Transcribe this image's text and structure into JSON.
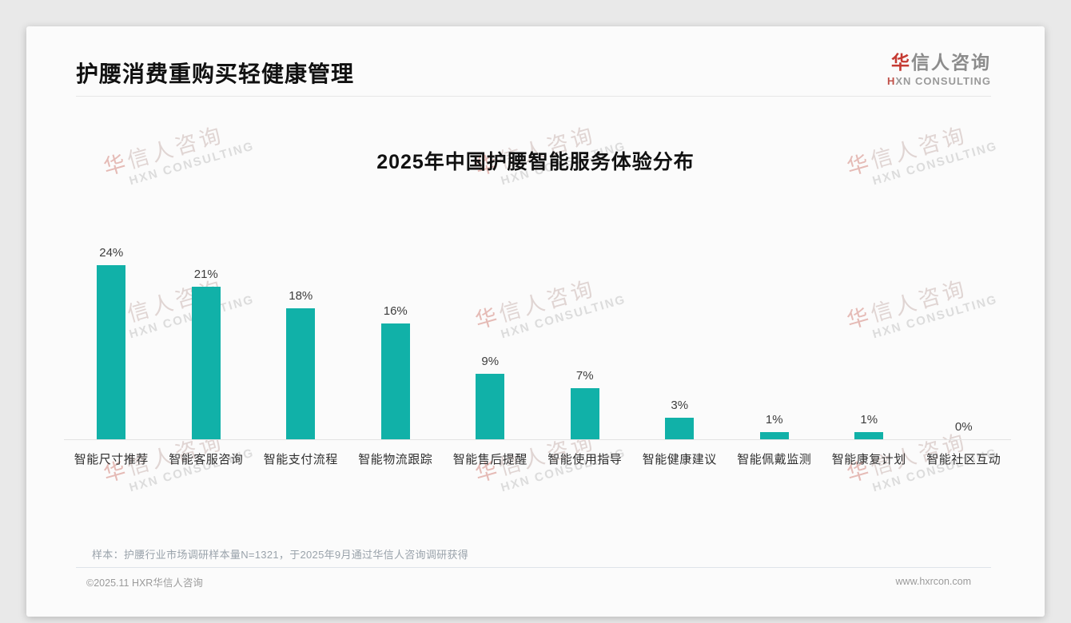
{
  "page": {
    "header": {
      "title": "护腰消费重购买轻健康管理",
      "logo": {
        "zh_first": "华",
        "zh_rest": "信人咨询",
        "en_first": "H",
        "en_rest": "XN CONSULTING"
      }
    },
    "footnote": "样本：护腰行业市场调研样本量N=1321，于2025年9月通过华信人咨询调研获得",
    "footer": {
      "left": "©2025.11 HXR华信人咨询",
      "right": "www.hxrcon.com"
    },
    "watermark": {
      "zh_first": "华",
      "zh_rest": "信人咨询",
      "en": "HXN CONSULTING"
    }
  },
  "chart_data": {
    "type": "bar",
    "title": "2025年中国护腰智能服务体验分布",
    "categories": [
      "智能尺寸推荐",
      "智能客服咨询",
      "智能支付流程",
      "智能物流跟踪",
      "智能售后提醒",
      "智能使用指导",
      "智能健康建议",
      "智能佩戴监测",
      "智能康复计划",
      "智能社区互动"
    ],
    "values": [
      24,
      21,
      18,
      16,
      9,
      7,
      3,
      1,
      1,
      0
    ],
    "value_labels": [
      "24%",
      "21%",
      "18%",
      "16%",
      "9%",
      "7%",
      "3%",
      "1%",
      "1%",
      "0%"
    ],
    "unit": "%",
    "bar_color": "#11b1a8",
    "xlabel": "",
    "ylabel": "",
    "ylim": [
      0,
      26
    ],
    "grid": false,
    "legend": false,
    "value_labels_position": "above-bars"
  }
}
